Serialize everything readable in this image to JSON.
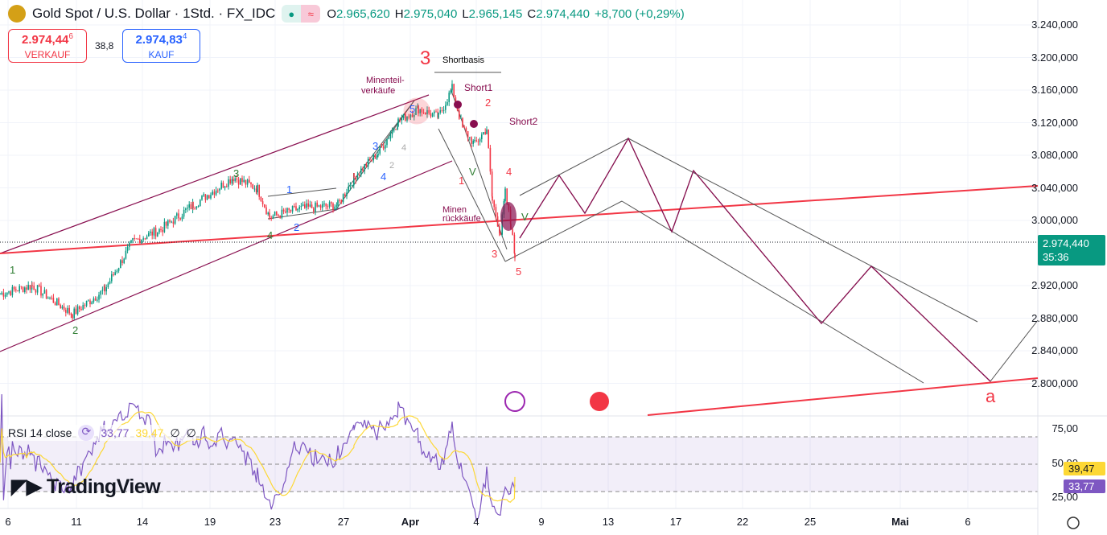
{
  "header": {
    "title": "Gold Spot / U.S. Dollar · 1Std. · FX_IDC",
    "open_label": "O",
    "open": "2.965,620",
    "high_label": "H",
    "high": "2.975,040",
    "low_label": "L",
    "low": "2.965,145",
    "close_label": "C",
    "close": "2.974,440",
    "change": "+8,700 (+0,29%)"
  },
  "trade": {
    "sell_price": "2.974,44",
    "sell_sup": "6",
    "sell_label": "VERKAUF",
    "spread": "38,8",
    "buy_price": "2.974,83",
    "buy_sup": "4",
    "buy_label": "KAUF"
  },
  "price_axis": [
    "3.240,000",
    "3.200,000",
    "3.160,000",
    "3.120,000",
    "3.080,000",
    "3.040,000",
    "3.000,000",
    "2.920,000",
    "2.880,000",
    "2.840,000",
    "2.800,000"
  ],
  "last_price": {
    "value": "2.974,440",
    "countdown": "35:36",
    "color": "#089981"
  },
  "rsi": {
    "label": "RSI 14 close",
    "rsi_value": "33,77",
    "ma_value": "39,47",
    "na1": "∅",
    "na2": "∅",
    "axis": [
      "75,00",
      "50,00",
      "25,00"
    ],
    "rsi_color": "#7e57c2",
    "ma_color": "#fdd835"
  },
  "time_axis": [
    "6",
    "11",
    "14",
    "19",
    "23",
    "27",
    "Apr",
    "4",
    "9",
    "13",
    "17",
    "22",
    "25",
    "Mai",
    "6"
  ],
  "annotations": {
    "wave3_big": "3",
    "shortbasis": "Shortbasis",
    "minenteil": "Minenteil-",
    "verkaeufe": "verkäufe",
    "short1": "Short1",
    "short2": "Short2",
    "minen": "Minen",
    "rueckkaeufe": "rückkäufe",
    "a": "a",
    "w1": "1",
    "w2": "2",
    "w3": "3",
    "w4": "4",
    "s1": "1",
    "s2": "2",
    "s3": "3",
    "s4": "4",
    "s5": "5",
    "t1": "1",
    "t2": "2",
    "t3": "3",
    "t4": "4",
    "t5": "5",
    "v1": "V",
    "v2": "V",
    "g2": "2",
    "g4": "4"
  },
  "watermark": "TradingView",
  "chart_data": {
    "type": "line",
    "title": "Gold Spot / U.S. Dollar · 1Std. · FX_IDC",
    "x": [
      "Mar 6",
      "Mar 8",
      "Mar 11",
      "Mar 13",
      "Mar 14",
      "Mar 16",
      "Mar 18",
      "Mar 20",
      "Mar 21",
      "Mar 22",
      "Mar 24",
      "Mar 26",
      "Mar 27",
      "Mar 28",
      "Mar 30",
      "Mar 31",
      "Apr 1",
      "Apr 2",
      "Apr 3",
      "Apr 4",
      "Apr 4b",
      "Apr 5",
      "Apr 6",
      "Apr 6b",
      "Apr 7",
      "Apr 7b",
      "Apr 7c"
    ],
    "series": [
      {
        "name": "price",
        "values": [
          2910,
          2920,
          2885,
          2915,
          2974,
          2989,
          3019,
          3053,
          3039,
          3004,
          3014,
          3019,
          3053,
          3083,
          3122,
          3137,
          3127,
          3162,
          3113,
          3093,
          3113,
          3024,
          2984,
          3034,
          2994,
          2957,
          2974.44
        ]
      }
    ],
    "ylim": [
      2780,
      3250
    ],
    "ylabel": "",
    "xlabel": "",
    "rsi_last": 33.77,
    "rsi_ma_last": 39.47
  }
}
